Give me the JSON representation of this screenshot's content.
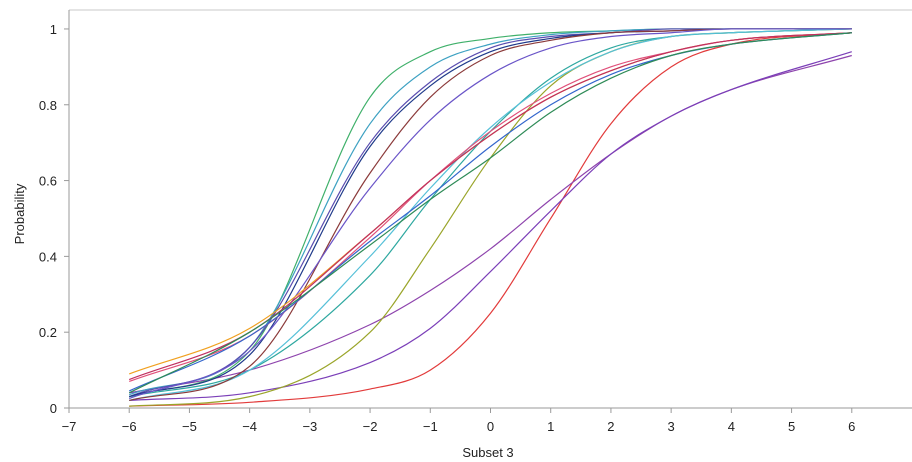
{
  "chart_data": {
    "type": "line",
    "xlabel": "Subset 3",
    "ylabel": "Probability",
    "xlim": [
      -7,
      7
    ],
    "ylim": [
      0,
      1.05
    ],
    "x_ticks": [
      -7,
      -6,
      -5,
      -4,
      -3,
      -2,
      -1,
      0,
      1,
      2,
      3,
      4,
      5,
      6
    ],
    "x_tick_labels": [
      "−7",
      "−6",
      "−5",
      "−4",
      "−3",
      "−2",
      "−1",
      "0",
      "1",
      "2",
      "3",
      "4",
      "5",
      "6"
    ],
    "y_ticks": [
      0,
      0.2,
      0.4,
      0.6,
      0.8,
      1
    ],
    "y_tick_labels": [
      "0",
      "0.2",
      "0.4",
      "0.6",
      "0.8",
      "1"
    ],
    "grid": false,
    "legend": "none",
    "x_range_of_curves": [
      -6,
      6
    ],
    "series": [
      {
        "color": "#e23b3b",
        "x": [
          -6,
          -4,
          -2,
          -1,
          0,
          1,
          2,
          3,
          4,
          6
        ],
        "y": [
          0.005,
          0.015,
          0.05,
          0.1,
          0.25,
          0.5,
          0.75,
          0.9,
          0.96,
          0.99
        ]
      },
      {
        "color": "#8e44ad",
        "x": [
          -6,
          -4,
          -2,
          -1,
          0,
          1,
          2,
          3,
          4,
          6
        ],
        "y": [
          0.04,
          0.1,
          0.22,
          0.31,
          0.42,
          0.55,
          0.67,
          0.77,
          0.84,
          0.93
        ]
      },
      {
        "color": "#7b3fb8",
        "x": [
          -6,
          -4,
          -2,
          -1,
          0,
          1,
          2,
          3,
          4,
          6
        ],
        "y": [
          0.02,
          0.04,
          0.12,
          0.21,
          0.36,
          0.52,
          0.67,
          0.77,
          0.84,
          0.94
        ]
      },
      {
        "color": "#9aa52a",
        "x": [
          -6,
          -4,
          -2,
          -1,
          0,
          1,
          2,
          3,
          4,
          6
        ],
        "y": [
          0.005,
          0.03,
          0.2,
          0.42,
          0.66,
          0.85,
          0.94,
          0.98,
          0.99,
          1.0
        ]
      },
      {
        "color": "#2ea8a0",
        "x": [
          -6,
          -4,
          -2,
          -1,
          0,
          1,
          2,
          3,
          4,
          6
        ],
        "y": [
          0.03,
          0.1,
          0.35,
          0.55,
          0.73,
          0.87,
          0.95,
          0.98,
          0.99,
          1.0
        ]
      },
      {
        "color": "#56c0d8",
        "x": [
          -6,
          -4,
          -2,
          -1,
          0,
          1,
          2,
          3,
          4,
          6
        ],
        "y": [
          0.02,
          0.1,
          0.4,
          0.58,
          0.74,
          0.86,
          0.94,
          0.98,
          0.99,
          1.0
        ]
      },
      {
        "color": "#3fb06a",
        "x": [
          -6,
          -4,
          -2,
          -1,
          0,
          1,
          2,
          3,
          4,
          6
        ],
        "y": [
          0.03,
          0.15,
          0.82,
          0.94,
          0.975,
          0.99,
          0.995,
          1.0,
          1.0,
          1.0
        ]
      },
      {
        "color": "#3da1c2",
        "x": [
          -6,
          -4,
          -2,
          -1,
          0,
          1,
          2,
          3,
          4,
          6
        ],
        "y": [
          0.035,
          0.16,
          0.75,
          0.9,
          0.96,
          0.985,
          0.995,
          1.0,
          1.0,
          1.0
        ]
      },
      {
        "color": "#5a4db0",
        "x": [
          -6,
          -4,
          -2,
          -1,
          0,
          1,
          2,
          3,
          4,
          6
        ],
        "y": [
          0.03,
          0.16,
          0.7,
          0.86,
          0.95,
          0.98,
          0.99,
          1.0,
          1.0,
          1.0
        ]
      },
      {
        "color": "#1f3a8a",
        "x": [
          -6,
          -4,
          -2,
          -1,
          0,
          1,
          2,
          3,
          4,
          6
        ],
        "y": [
          0.03,
          0.14,
          0.69,
          0.85,
          0.94,
          0.975,
          0.99,
          0.995,
          1.0,
          1.0
        ]
      },
      {
        "color": "#8b3a3a",
        "x": [
          -6,
          -4,
          -2,
          -1,
          0,
          1,
          2,
          3,
          4,
          6
        ],
        "y": [
          0.02,
          0.11,
          0.62,
          0.82,
          0.93,
          0.97,
          0.99,
          0.995,
          1.0,
          1.0
        ]
      },
      {
        "color": "#6a55c8",
        "x": [
          -6,
          -4,
          -2,
          -1,
          0,
          1,
          2,
          3,
          4,
          6
        ],
        "y": [
          0.025,
          0.15,
          0.58,
          0.76,
          0.88,
          0.95,
          0.98,
          0.99,
          1.0,
          1.0
        ]
      },
      {
        "color": "#f0a020",
        "x": [
          -6,
          -4,
          -2,
          -1,
          0,
          1,
          2,
          3,
          4,
          6
        ],
        "y": [
          0.09,
          0.21,
          0.46,
          0.6,
          0.72,
          0.82,
          0.89,
          0.94,
          0.97,
          0.99
        ]
      },
      {
        "color": "#e0507a",
        "x": [
          -6,
          -4,
          -2,
          -1,
          0,
          1,
          2,
          3,
          4,
          6
        ],
        "y": [
          0.07,
          0.19,
          0.45,
          0.6,
          0.73,
          0.83,
          0.9,
          0.94,
          0.97,
          0.99
        ]
      },
      {
        "color": "#c03060",
        "x": [
          -6,
          -4,
          -2,
          -1,
          0,
          1,
          2,
          3,
          4,
          6
        ],
        "y": [
          0.075,
          0.2,
          0.46,
          0.6,
          0.72,
          0.82,
          0.89,
          0.94,
          0.97,
          0.99
        ]
      },
      {
        "color": "#3366cc",
        "x": [
          -6,
          -4,
          -2,
          -1,
          0,
          1,
          2,
          3,
          4,
          6
        ],
        "y": [
          0.045,
          0.19,
          0.44,
          0.56,
          0.69,
          0.8,
          0.88,
          0.93,
          0.96,
          0.99
        ]
      },
      {
        "color": "#2e8b57",
        "x": [
          -6,
          -4,
          -2,
          -1,
          0,
          1,
          2,
          3,
          4,
          6
        ],
        "y": [
          0.04,
          0.2,
          0.43,
          0.55,
          0.66,
          0.78,
          0.87,
          0.93,
          0.96,
          0.99
        ]
      }
    ]
  }
}
